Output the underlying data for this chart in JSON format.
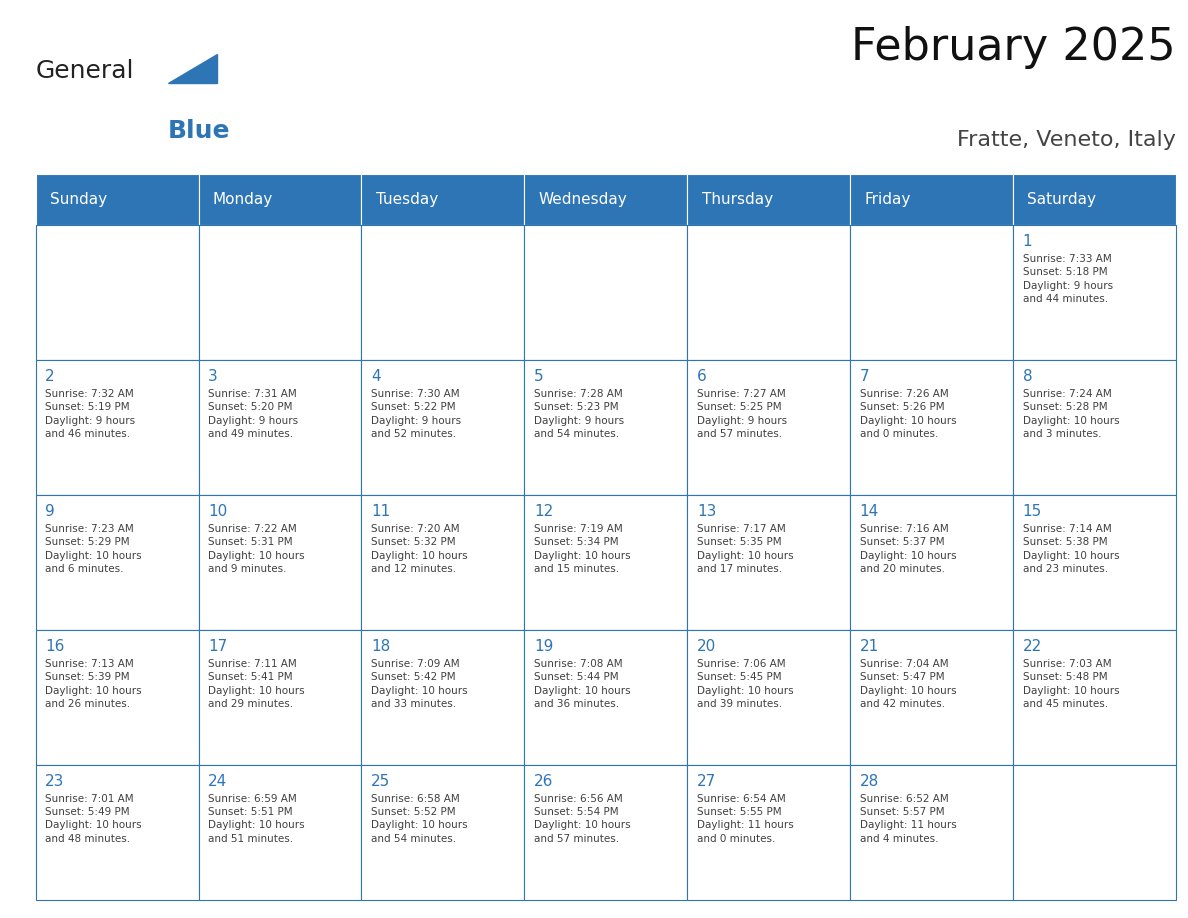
{
  "title": "February 2025",
  "subtitle": "Fratte, Veneto, Italy",
  "header_bg": "#2E75B6",
  "header_text_color": "#FFFFFF",
  "cell_bg": "#FFFFFF",
  "cell_border_color": "#2E75B6",
  "day_number_color": "#2E75B6",
  "cell_text_color": "#404040",
  "days_of_week": [
    "Sunday",
    "Monday",
    "Tuesday",
    "Wednesday",
    "Thursday",
    "Friday",
    "Saturday"
  ],
  "weeks": [
    [
      {
        "day": "",
        "info": ""
      },
      {
        "day": "",
        "info": ""
      },
      {
        "day": "",
        "info": ""
      },
      {
        "day": "",
        "info": ""
      },
      {
        "day": "",
        "info": ""
      },
      {
        "day": "",
        "info": ""
      },
      {
        "day": "1",
        "info": "Sunrise: 7:33 AM\nSunset: 5:18 PM\nDaylight: 9 hours\nand 44 minutes."
      }
    ],
    [
      {
        "day": "2",
        "info": "Sunrise: 7:32 AM\nSunset: 5:19 PM\nDaylight: 9 hours\nand 46 minutes."
      },
      {
        "day": "3",
        "info": "Sunrise: 7:31 AM\nSunset: 5:20 PM\nDaylight: 9 hours\nand 49 minutes."
      },
      {
        "day": "4",
        "info": "Sunrise: 7:30 AM\nSunset: 5:22 PM\nDaylight: 9 hours\nand 52 minutes."
      },
      {
        "day": "5",
        "info": "Sunrise: 7:28 AM\nSunset: 5:23 PM\nDaylight: 9 hours\nand 54 minutes."
      },
      {
        "day": "6",
        "info": "Sunrise: 7:27 AM\nSunset: 5:25 PM\nDaylight: 9 hours\nand 57 minutes."
      },
      {
        "day": "7",
        "info": "Sunrise: 7:26 AM\nSunset: 5:26 PM\nDaylight: 10 hours\nand 0 minutes."
      },
      {
        "day": "8",
        "info": "Sunrise: 7:24 AM\nSunset: 5:28 PM\nDaylight: 10 hours\nand 3 minutes."
      }
    ],
    [
      {
        "day": "9",
        "info": "Sunrise: 7:23 AM\nSunset: 5:29 PM\nDaylight: 10 hours\nand 6 minutes."
      },
      {
        "day": "10",
        "info": "Sunrise: 7:22 AM\nSunset: 5:31 PM\nDaylight: 10 hours\nand 9 minutes."
      },
      {
        "day": "11",
        "info": "Sunrise: 7:20 AM\nSunset: 5:32 PM\nDaylight: 10 hours\nand 12 minutes."
      },
      {
        "day": "12",
        "info": "Sunrise: 7:19 AM\nSunset: 5:34 PM\nDaylight: 10 hours\nand 15 minutes."
      },
      {
        "day": "13",
        "info": "Sunrise: 7:17 AM\nSunset: 5:35 PM\nDaylight: 10 hours\nand 17 minutes."
      },
      {
        "day": "14",
        "info": "Sunrise: 7:16 AM\nSunset: 5:37 PM\nDaylight: 10 hours\nand 20 minutes."
      },
      {
        "day": "15",
        "info": "Sunrise: 7:14 AM\nSunset: 5:38 PM\nDaylight: 10 hours\nand 23 minutes."
      }
    ],
    [
      {
        "day": "16",
        "info": "Sunrise: 7:13 AM\nSunset: 5:39 PM\nDaylight: 10 hours\nand 26 minutes."
      },
      {
        "day": "17",
        "info": "Sunrise: 7:11 AM\nSunset: 5:41 PM\nDaylight: 10 hours\nand 29 minutes."
      },
      {
        "day": "18",
        "info": "Sunrise: 7:09 AM\nSunset: 5:42 PM\nDaylight: 10 hours\nand 33 minutes."
      },
      {
        "day": "19",
        "info": "Sunrise: 7:08 AM\nSunset: 5:44 PM\nDaylight: 10 hours\nand 36 minutes."
      },
      {
        "day": "20",
        "info": "Sunrise: 7:06 AM\nSunset: 5:45 PM\nDaylight: 10 hours\nand 39 minutes."
      },
      {
        "day": "21",
        "info": "Sunrise: 7:04 AM\nSunset: 5:47 PM\nDaylight: 10 hours\nand 42 minutes."
      },
      {
        "day": "22",
        "info": "Sunrise: 7:03 AM\nSunset: 5:48 PM\nDaylight: 10 hours\nand 45 minutes."
      }
    ],
    [
      {
        "day": "23",
        "info": "Sunrise: 7:01 AM\nSunset: 5:49 PM\nDaylight: 10 hours\nand 48 minutes."
      },
      {
        "day": "24",
        "info": "Sunrise: 6:59 AM\nSunset: 5:51 PM\nDaylight: 10 hours\nand 51 minutes."
      },
      {
        "day": "25",
        "info": "Sunrise: 6:58 AM\nSunset: 5:52 PM\nDaylight: 10 hours\nand 54 minutes."
      },
      {
        "day": "26",
        "info": "Sunrise: 6:56 AM\nSunset: 5:54 PM\nDaylight: 10 hours\nand 57 minutes."
      },
      {
        "day": "27",
        "info": "Sunrise: 6:54 AM\nSunset: 5:55 PM\nDaylight: 11 hours\nand 0 minutes."
      },
      {
        "day": "28",
        "info": "Sunrise: 6:52 AM\nSunset: 5:57 PM\nDaylight: 11 hours\nand 4 minutes."
      },
      {
        "day": "",
        "info": ""
      }
    ]
  ],
  "logo_general_color": "#222222",
  "logo_blue_color": "#2E75B6",
  "fig_width": 11.88,
  "fig_height": 9.18
}
